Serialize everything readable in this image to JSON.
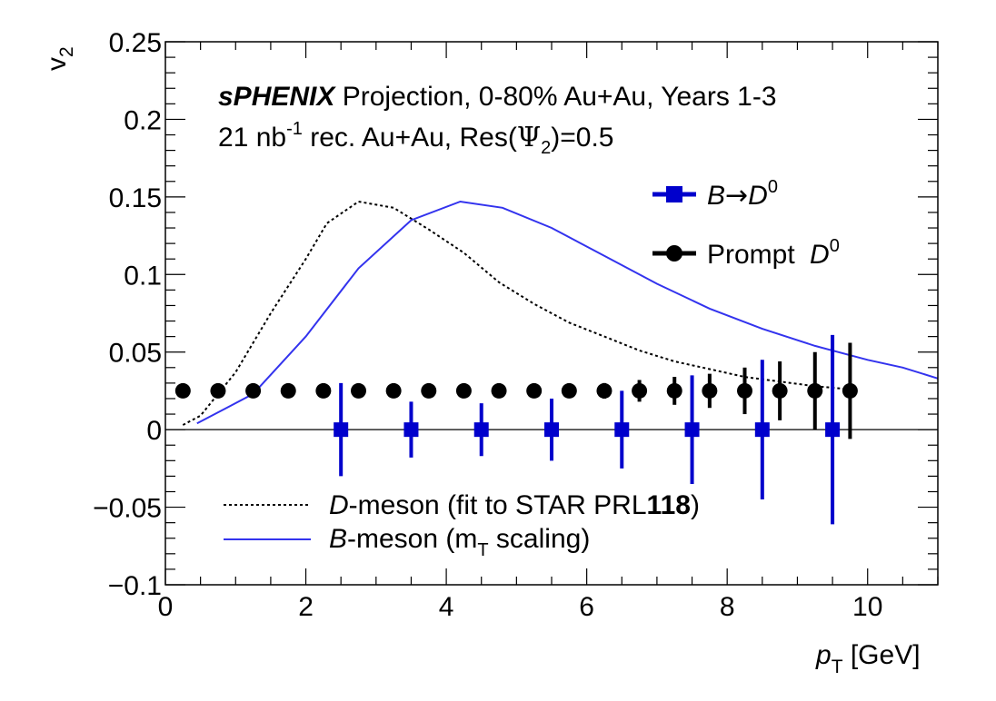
{
  "chart_data": {
    "type": "scatter",
    "xlabel_main": "p",
    "xlabel_sub": "T",
    "xlabel_unit": " [GeV]",
    "ylabel_main": "v",
    "ylabel_sub": "2",
    "xlim": [
      0,
      11
    ],
    "ylim": [
      -0.1,
      0.25
    ],
    "xticks": [
      0,
      2,
      4,
      6,
      8,
      10
    ],
    "xtick_labels": [
      "0",
      "2",
      "4",
      "6",
      "8",
      "10"
    ],
    "yticks": [
      -0.1,
      -0.05,
      0,
      0.05,
      0.1,
      0.15,
      0.2,
      0.25
    ],
    "ytick_labels": [
      "−0.1",
      "−0.05",
      "0",
      "0.05",
      "0.1",
      "0.15",
      "0.2",
      "0.25"
    ],
    "annotation": {
      "brand": "sPHENIX",
      "line1_rest": " Projection, 0-80% Au+Au, Years 1-3",
      "line2_a": "21 nb",
      "line2_sup": "-1",
      "line2_b": " rec. Au+Au, Res(",
      "line2_psi": "Ψ",
      "line2_psi_sub": "2",
      "line2_c": ")=0.5"
    },
    "legend_points": [
      {
        "label_a": "B",
        "label_arrow": "→",
        "label_b": "D",
        "label_sup": "0",
        "color": "#0000cc",
        "marker": "square"
      },
      {
        "label_a": "Prompt ",
        "label_b": "D",
        "label_sup": "0",
        "color": "#000000",
        "marker": "circle"
      }
    ],
    "legend_curves": [
      {
        "label_it": "D",
        "label_rest": "-meson (fit to STAR PRL",
        "label_bold": "118",
        "label_end": ")",
        "color": "#000000",
        "style": "dotted"
      },
      {
        "label_it": "B",
        "label_rest": "-meson (m",
        "label_sub": "T",
        "label_end": " scaling)",
        "color": "#3333ee",
        "style": "solid"
      }
    ],
    "series": [
      {
        "name": "B→D0",
        "color": "#0000cc",
        "marker": "square",
        "x": [
          2.5,
          3.5,
          4.5,
          5.5,
          6.5,
          7.5,
          8.5,
          9.5
        ],
        "y": [
          0,
          0,
          0,
          0,
          0,
          0,
          0,
          0
        ],
        "yerr": [
          0.03,
          0.018,
          0.017,
          0.02,
          0.025,
          0.035,
          0.045,
          0.061
        ]
      },
      {
        "name": "Prompt D0",
        "color": "#000000",
        "marker": "circle",
        "x": [
          0.25,
          0.75,
          1.25,
          1.75,
          2.25,
          2.75,
          3.25,
          3.75,
          4.25,
          4.75,
          5.25,
          5.75,
          6.25,
          6.75,
          7.25,
          7.75,
          8.25,
          8.75,
          9.25,
          9.75
        ],
        "y": [
          0.025,
          0.025,
          0.025,
          0.025,
          0.025,
          0.025,
          0.025,
          0.025,
          0.025,
          0.025,
          0.025,
          0.025,
          0.025,
          0.025,
          0.025,
          0.025,
          0.025,
          0.025,
          0.025,
          0.025
        ],
        "yerr": [
          0.001,
          0.001,
          0.001,
          0.001,
          0.001,
          0.001,
          0.001,
          0.001,
          0.002,
          0.002,
          0.003,
          0.004,
          0.005,
          0.007,
          0.009,
          0.011,
          0.015,
          0.019,
          0.025,
          0.031
        ]
      },
      {
        "name": "D-meson (fit to STAR PRL118)",
        "color": "#000000",
        "style": "dotted",
        "x": [
          0.25,
          0.5,
          1.0,
          1.5,
          2.0,
          2.3,
          2.75,
          3.25,
          3.75,
          4.25,
          4.75,
          5.25,
          5.75,
          6.25,
          6.75,
          7.25,
          7.75,
          8.25,
          8.75,
          9.25,
          9.75
        ],
        "y": [
          0.003,
          0.009,
          0.037,
          0.075,
          0.11,
          0.133,
          0.147,
          0.143,
          0.129,
          0.114,
          0.095,
          0.081,
          0.069,
          0.06,
          0.051,
          0.044,
          0.039,
          0.034,
          0.031,
          0.028,
          0.026
        ]
      },
      {
        "name": "B-meson (mT scaling)",
        "color": "#3333ee",
        "style": "solid",
        "x": [
          0.45,
          1.25,
          2.0,
          2.75,
          3.5,
          4.2,
          4.8,
          5.5,
          6.25,
          7.0,
          7.75,
          8.5,
          9.25,
          10.0,
          10.5,
          11.0
        ],
        "y": [
          0.004,
          0.023,
          0.06,
          0.104,
          0.135,
          0.147,
          0.143,
          0.13,
          0.112,
          0.094,
          0.078,
          0.065,
          0.054,
          0.045,
          0.04,
          0.033
        ]
      }
    ],
    "grid": false
  }
}
